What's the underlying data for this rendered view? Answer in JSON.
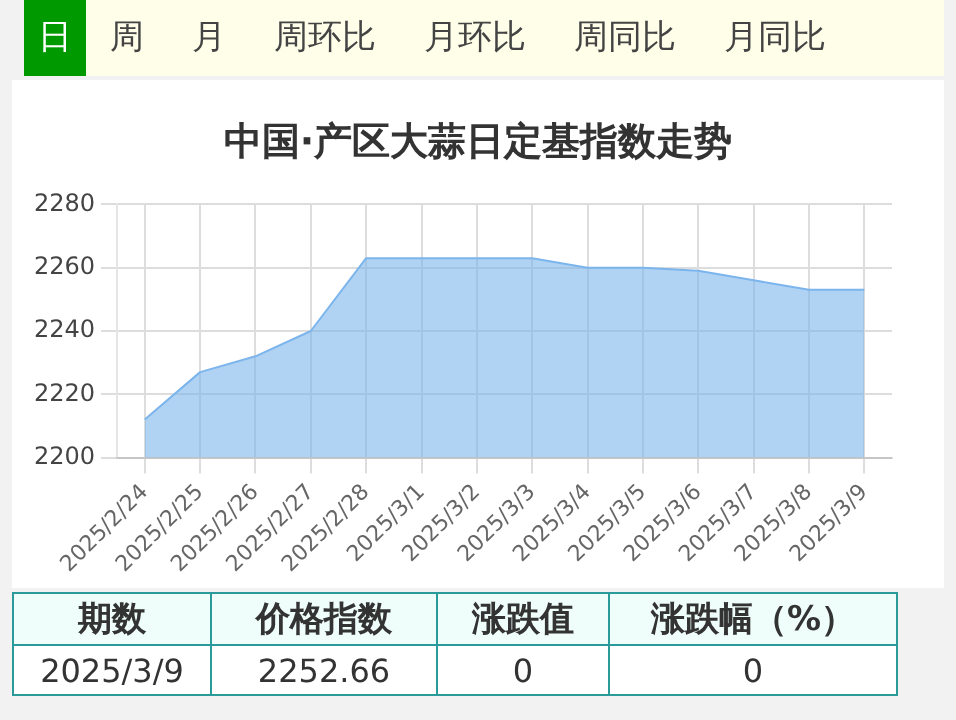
{
  "chart_data": {
    "type": "area",
    "title": "中国·产区大蒜日定基指数走势",
    "categories": [
      "2025/2/24",
      "2025/2/25",
      "2025/2/26",
      "2025/2/27",
      "2025/2/28",
      "2025/3/1",
      "2025/3/2",
      "2025/3/3",
      "2025/3/4",
      "2025/3/5",
      "2025/3/6",
      "2025/3/7",
      "2025/3/8",
      "2025/3/9"
    ],
    "series": [
      {
        "color": "#7cb5ec",
        "values": [
          2212,
          2227,
          2232,
          2240,
          2263,
          2263,
          2263,
          2263,
          2260,
          2260,
          2259,
          2256,
          2253,
          2253
        ]
      }
    ],
    "ylim": [
      2200,
      2280
    ],
    "yticks": [
      2200,
      2220,
      2240,
      2260,
      2280
    ],
    "grid": true,
    "annotations": [
      "日",
      "周",
      "月",
      "周环比",
      "月环比",
      "周同比",
      "月同比",
      "期数",
      "价格指数",
      "涨跌值",
      "涨跌幅（%）",
      "2025/3/9",
      "2252.66",
      "0",
      "0"
    ]
  }
}
